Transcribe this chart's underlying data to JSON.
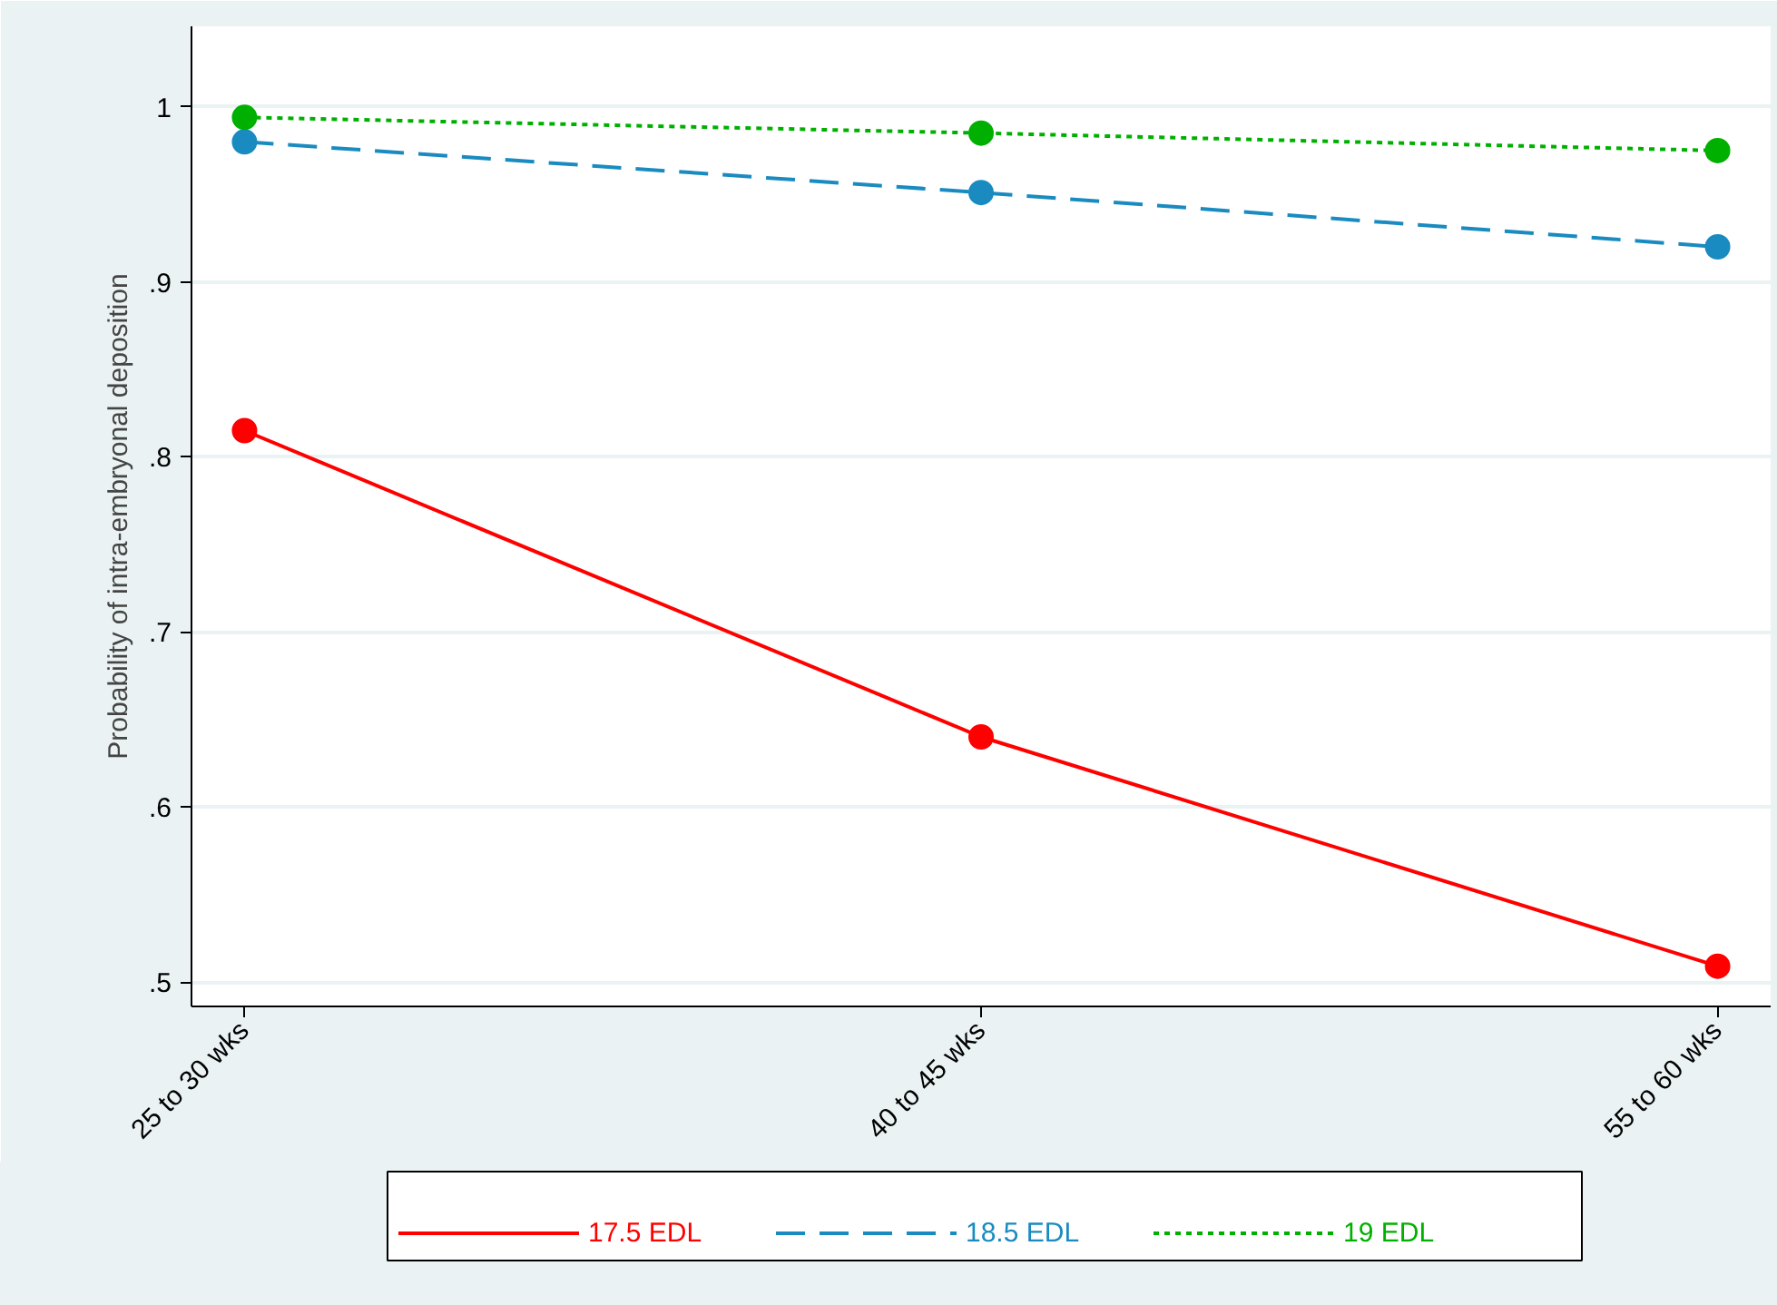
{
  "chart_data": {
    "type": "line",
    "ylabel": "Probability of intra-embryonal deposition",
    "categories": [
      "25 to 30 wks",
      "40 to 45 wks",
      "55 to 60 wks"
    ],
    "series": [
      {
        "name": "17.5 EDL",
        "color": "#ff0000",
        "values": [
          0.815,
          0.64,
          0.509
        ],
        "line_style": "solid"
      },
      {
        "name": "18.5 EDL",
        "color": "#1a8bc0",
        "values": [
          0.98,
          0.951,
          0.92
        ],
        "line_style": "dashed"
      },
      {
        "name": "19 EDL",
        "color": "#00b000",
        "values": [
          0.994,
          0.985,
          0.975
        ],
        "line_style": "dotted"
      }
    ],
    "ylim": [
      0.486,
      1.046
    ],
    "yticks": [
      {
        "value": 0.5,
        "label": ".5"
      },
      {
        "value": 0.6,
        "label": ".6"
      },
      {
        "value": 0.7,
        "label": ".7"
      },
      {
        "value": 0.8,
        "label": ".8"
      },
      {
        "value": 0.9,
        "label": ".9"
      },
      1
    ],
    "grid": "y",
    "legend": "bottom",
    "marker": "circle"
  }
}
